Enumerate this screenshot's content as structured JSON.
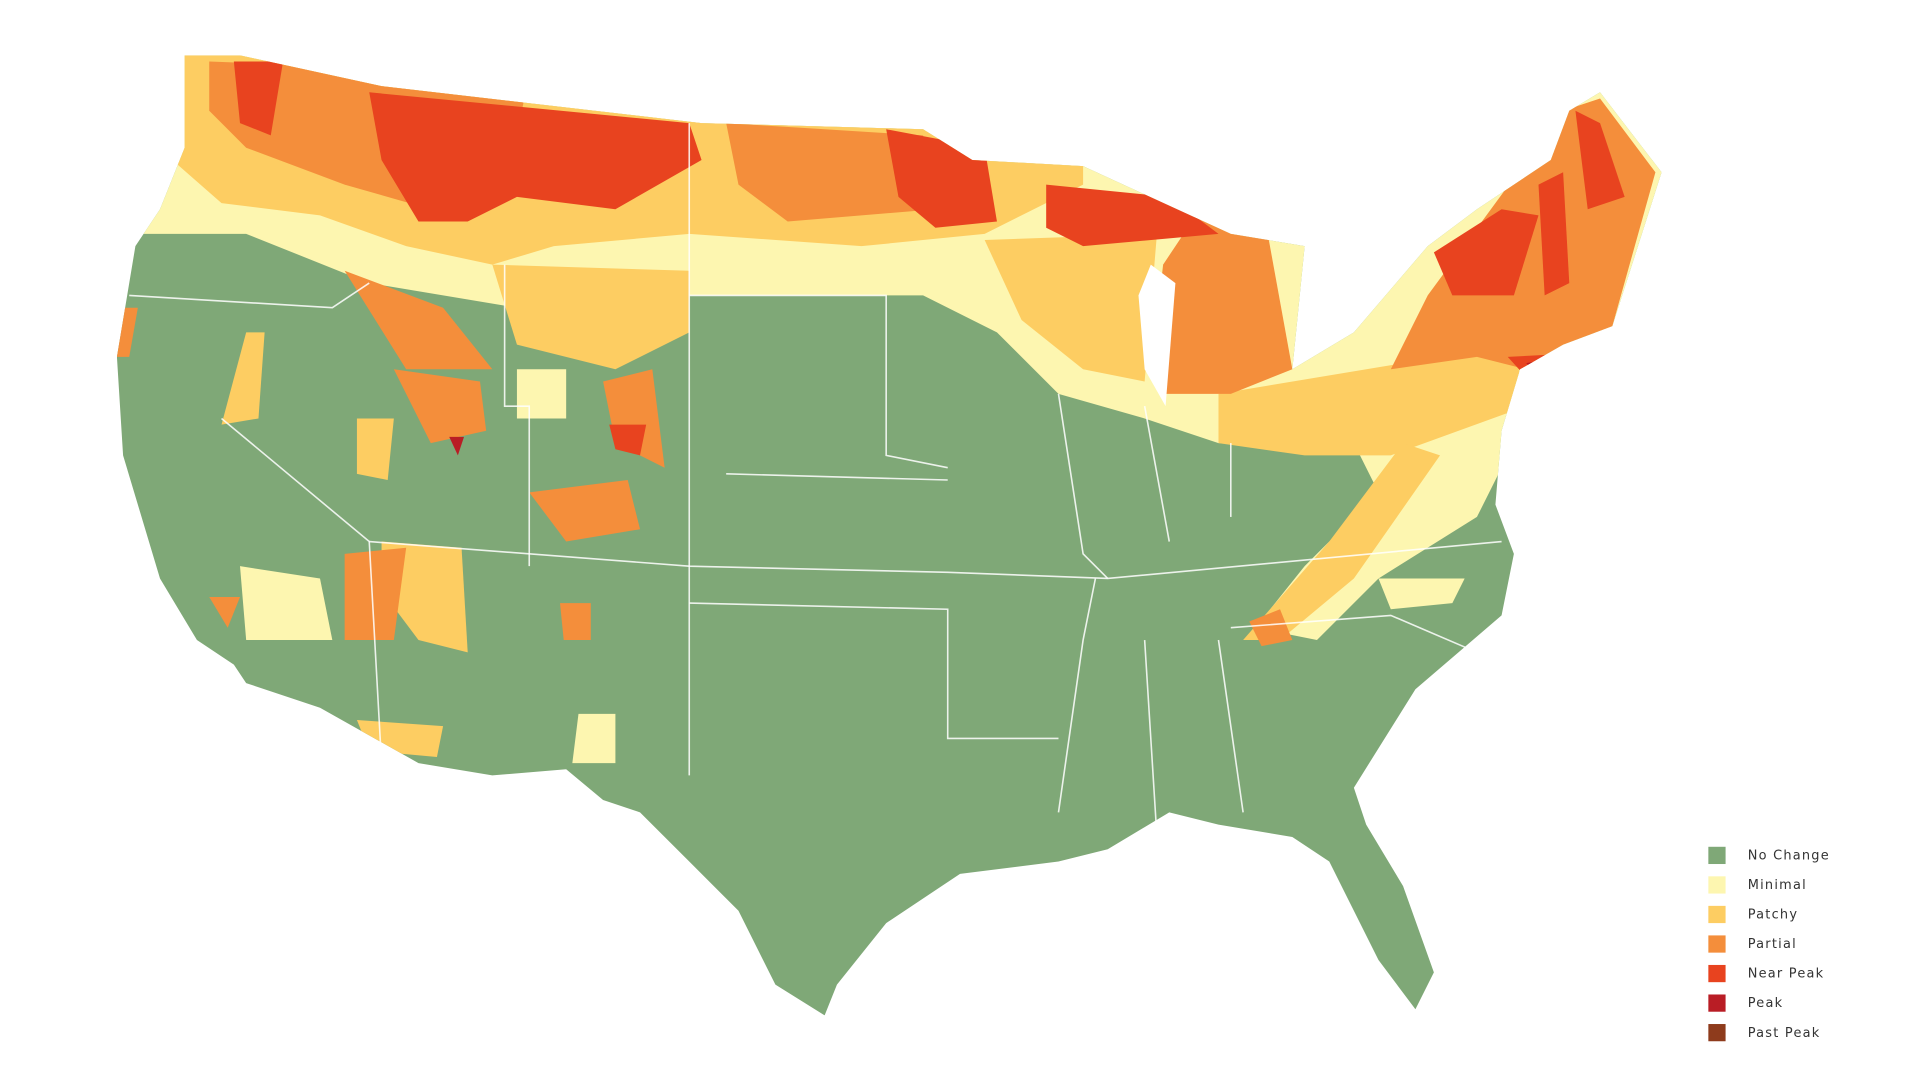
{
  "legend": {
    "items": [
      {
        "label": "No Change",
        "color": "#7fa877"
      },
      {
        "label": "Minimal",
        "color": "#fdf6b0"
      },
      {
        "label": "Patchy",
        "color": "#fdcd62"
      },
      {
        "label": "Partial",
        "color": "#f48e3b"
      },
      {
        "label": "Near Peak",
        "color": "#e8431f"
      },
      {
        "label": "Peak",
        "color": "#b91d25"
      },
      {
        "label": "Past Peak",
        "color": "#8e3b1c"
      }
    ]
  }
}
